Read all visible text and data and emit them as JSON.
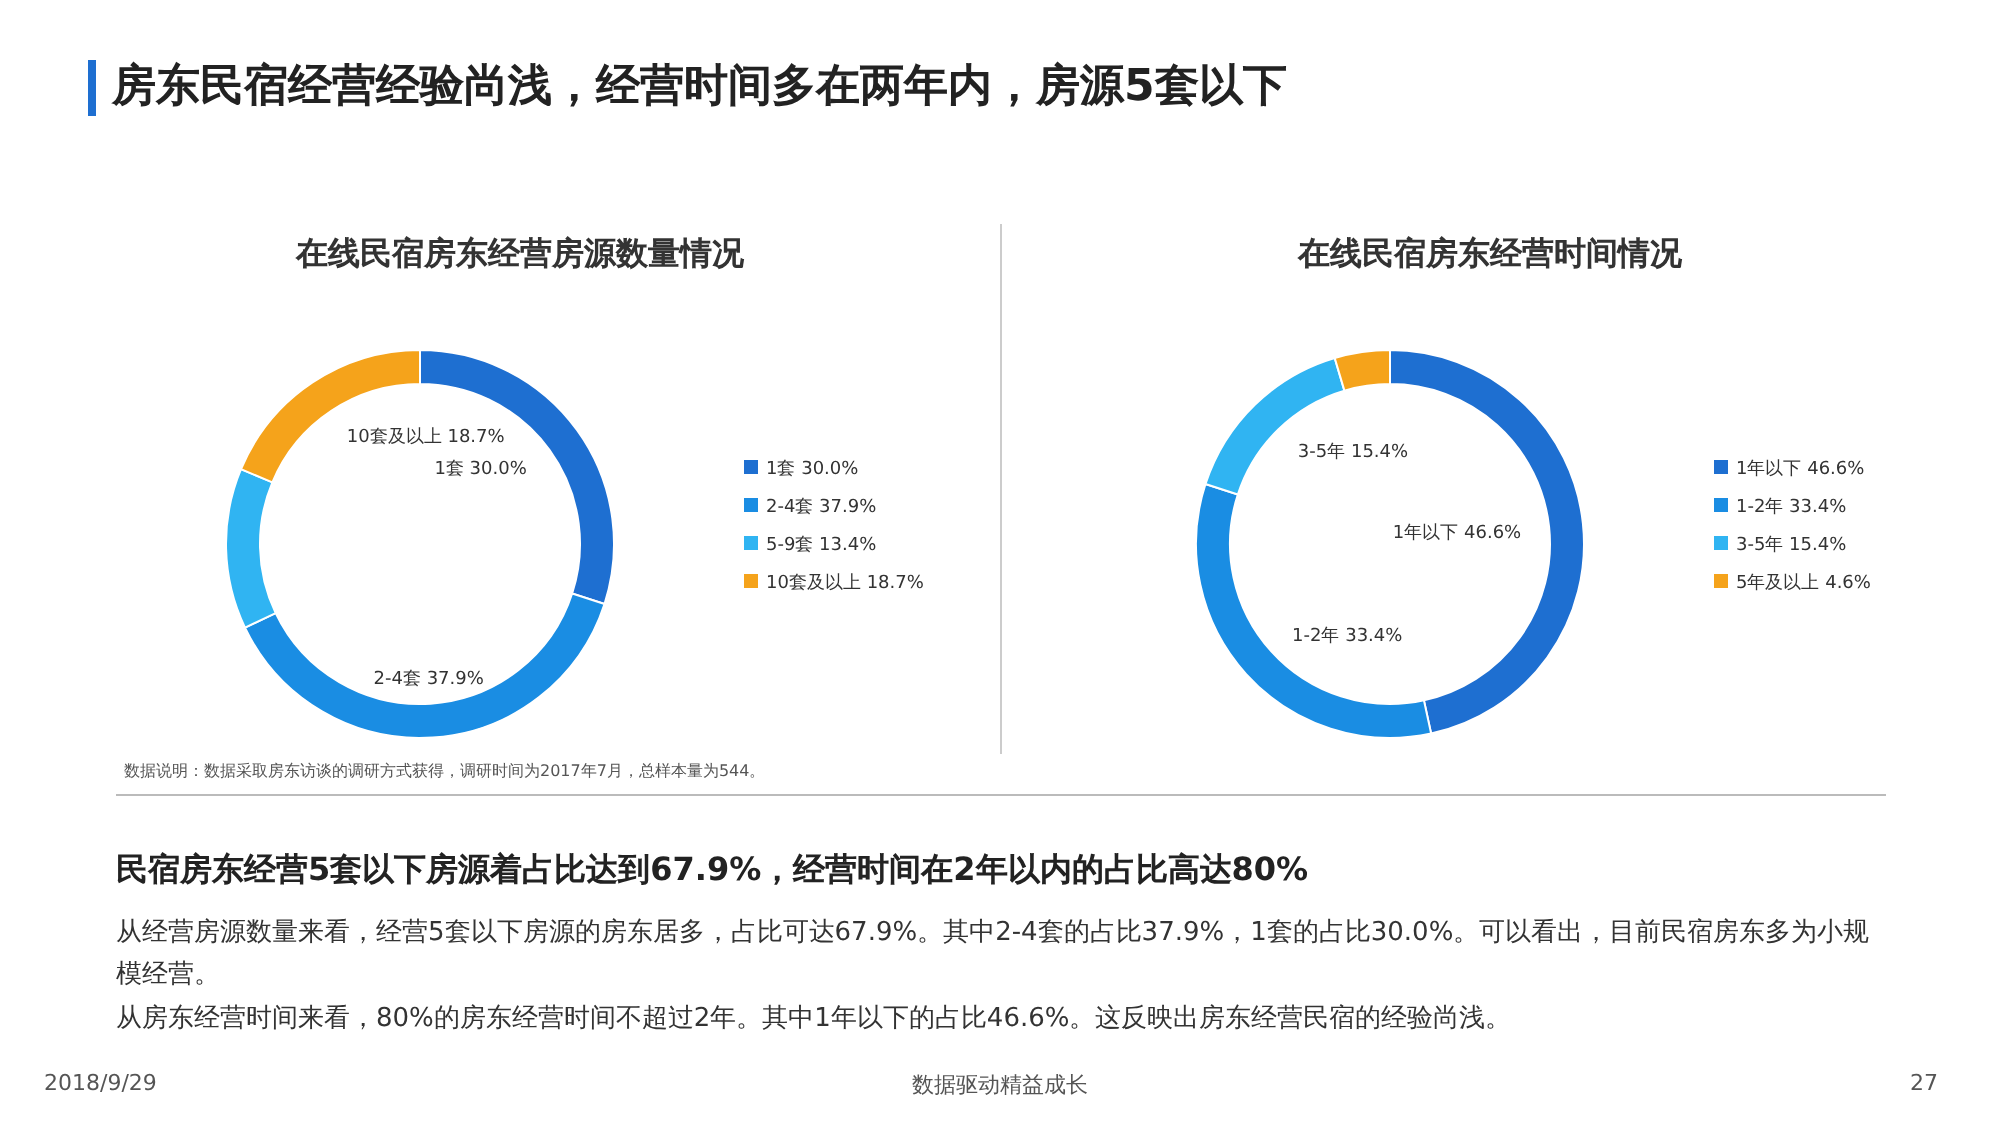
{
  "chart_data": [
    {
      "type": "donut",
      "title": "在线民宿房东经营房源数量情况",
      "categories": [
        "1套 30.0%",
        "2-4套 37.9%",
        "5-9套 13.4%",
        "10套及以上 18.7%"
      ],
      "values": [
        30.0,
        37.9,
        13.4,
        18.7
      ],
      "colors": [
        "#1e6fd1",
        "#1a8de3",
        "#30b4f2",
        "#f5a31b"
      ],
      "value_labels": [
        "1套 30.0%",
        "2-4套 37.9%",
        null,
        "10套及以上 18.7%"
      ],
      "legend": "right",
      "annotations": [
        "房东民宿经营经验尚浅，经营时间多在两年内，房源5套以下",
        "数据说明：数据采取房东访谈的调研方式获得，调研时间为2017年7月，总样本量为544。",
        "民宿房东经营5套以下房源着占比达到67.9%，经营时间在2年以内的占比高达80%",
        "从经营房源数量来看，经营5套以下房源的房东居多，占比可达67.9%。其中2-4套的占比37.9%，1套的占比30.0%。可以看出，目前民宿房东多为小规模经营。",
        "从房东经营时间来看，80%的房东经营时间不超过2年。其中1年以下的占比46.6%。这反映出房东经营民宿的经验尚浅。",
        "2018/9/29",
        "数据驱动精益成长",
        "27"
      ]
    },
    {
      "type": "donut",
      "title": "在线民宿房东经营时间情况",
      "categories": [
        "1年以下 46.6%",
        "1-2年 33.4%",
        "3-5年 15.4%",
        "5年及以上 4.6%"
      ],
      "values": [
        46.6,
        33.4,
        15.4,
        4.6
      ],
      "colors": [
        "#1e6fd1",
        "#1a8de3",
        "#30b4f2",
        "#f5a31b"
      ],
      "value_labels": [
        "1年以下 46.6%",
        "1-2年 33.4%",
        "3-5年 15.4%",
        null
      ],
      "legend": "right"
    }
  ]
}
